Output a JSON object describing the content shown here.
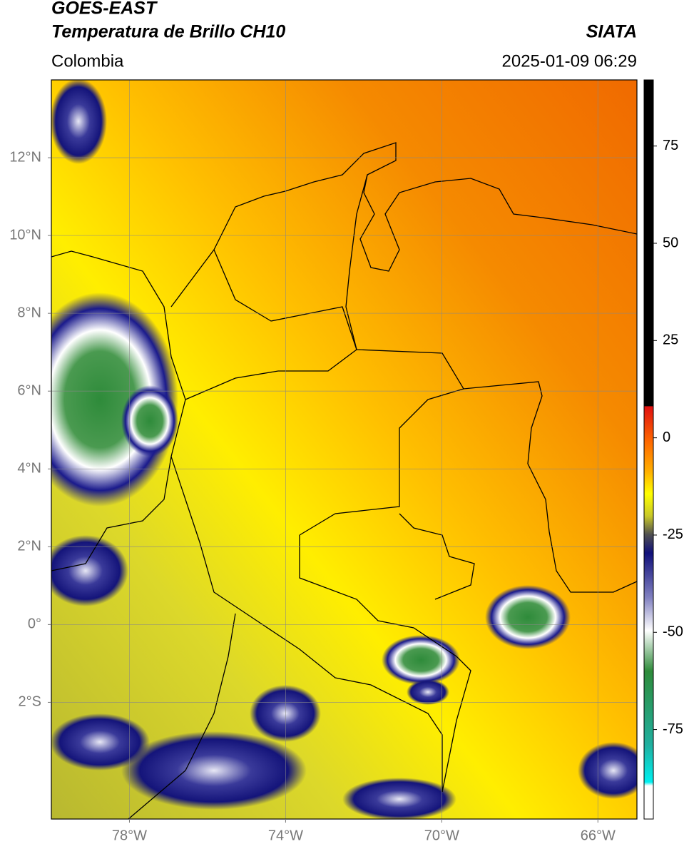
{
  "map": {
    "title": "GOES-EAST",
    "subtitle": "Temperatura de Brillo CH10",
    "source": "SIATA",
    "region": "Colombia",
    "timestamp": "2025-01-09 06:29",
    "lonlim": [
      -80,
      -65
    ],
    "latlim": [
      -5,
      14
    ],
    "lonticks": [
      {
        "value": -78,
        "label": "78°W"
      },
      {
        "value": -74,
        "label": "74°W"
      },
      {
        "value": -70,
        "label": "70°W"
      },
      {
        "value": -66,
        "label": "66°W"
      }
    ],
    "latticks": [
      {
        "value": 12,
        "label": "12°N"
      },
      {
        "value": 10,
        "label": "10°N"
      },
      {
        "value": 8,
        "label": "8°N"
      },
      {
        "value": 6,
        "label": "6°N"
      },
      {
        "value": 4,
        "label": "4°N"
      },
      {
        "value": 2,
        "label": "2°N"
      },
      {
        "value": 0,
        "label": "0°"
      },
      {
        "value": -2,
        "label": "2°S"
      }
    ],
    "grid": true
  },
  "colorbar": {
    "lim": [
      -98,
      92
    ],
    "ticks": [
      75,
      50,
      25,
      0,
      -25,
      -50,
      -75
    ]
  }
}
